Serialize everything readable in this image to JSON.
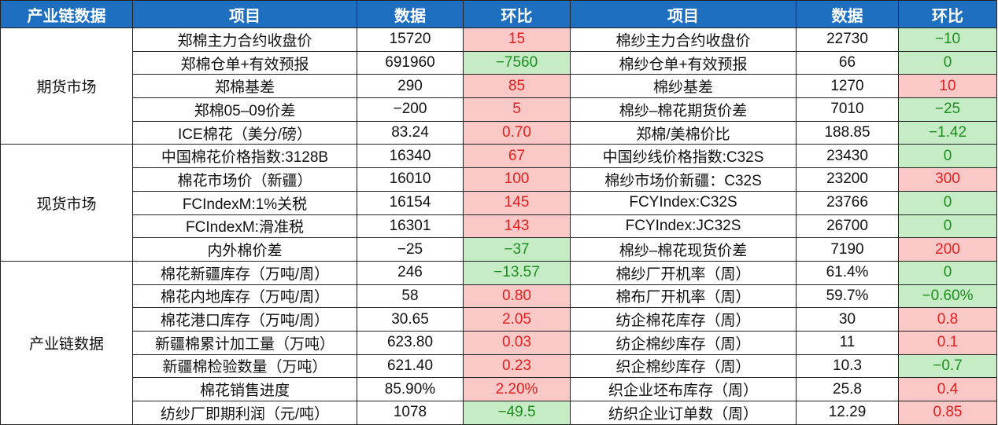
{
  "headers": [
    "产业链数据",
    "项目",
    "数据",
    "环比",
    "项目",
    "数据",
    "环比"
  ],
  "colors": {
    "header_bg": "#1f6fc0",
    "up_bg": "#fbc8c8",
    "up_text": "#e0201e",
    "down_bg": "#c6ecc6",
    "down_text": "#1e8c1e"
  },
  "sections": [
    {
      "name": "期货市场",
      "rows": [
        {
          "item1": "郑棉主力合约收盘价",
          "data1": "15720",
          "chg1": "15",
          "dir1": "up",
          "item2": "棉纱主力合约收盘价",
          "data2": "22730",
          "chg2": "−10",
          "dir2": "down"
        },
        {
          "item1": "郑棉仓单+有效预报",
          "data1": "691960",
          "chg1": "−7560",
          "dir1": "down",
          "item2": "棉纱仓单+有效预报",
          "data2": "66",
          "chg2": "0",
          "dir2": "flat"
        },
        {
          "item1": "郑棉基差",
          "data1": "290",
          "chg1": "85",
          "dir1": "up",
          "item2": "棉纱基差",
          "data2": "1270",
          "chg2": "10",
          "dir2": "up"
        },
        {
          "item1": "郑棉05–09价差",
          "data1": "−200",
          "chg1": "5",
          "dir1": "up",
          "item2": "棉纱–棉花期货价差",
          "data2": "7010",
          "chg2": "−25",
          "dir2": "down"
        },
        {
          "item1": "ICE棉花（美分/磅）",
          "data1": "83.24",
          "chg1": "0.70",
          "dir1": "up",
          "item2": "郑棉/美棉价比",
          "data2": "188.85",
          "chg2": "−1.42",
          "dir2": "down"
        }
      ]
    },
    {
      "name": "现货市场",
      "rows": [
        {
          "item1": "中国棉花价格指数:3128B",
          "data1": "16340",
          "chg1": "67",
          "dir1": "up",
          "item2": "中国纱线价格指数:C32S",
          "data2": "23430",
          "chg2": "0",
          "dir2": "flat"
        },
        {
          "item1": "棉花市场价（新疆）",
          "data1": "16010",
          "chg1": "100",
          "dir1": "up",
          "item2": "棉纱市场价新疆：C32S",
          "data2": "23200",
          "chg2": "300",
          "dir2": "up"
        },
        {
          "item1": "FCIndexM:1%关税",
          "data1": "16154",
          "chg1": "145",
          "dir1": "up",
          "item2": "FCYIndex:C32S",
          "data2": "23766",
          "chg2": "0",
          "dir2": "flat"
        },
        {
          "item1": "FCIndexM:滑准税",
          "data1": "16301",
          "chg1": "143",
          "dir1": "up",
          "item2": "FCYIndex:JC32S",
          "data2": "26700",
          "chg2": "0",
          "dir2": "flat"
        },
        {
          "item1": "内外棉价差",
          "data1": "−25",
          "chg1": "−37",
          "dir1": "down",
          "item2": "棉纱–棉花现货价差",
          "data2": "7190",
          "chg2": "200",
          "dir2": "up"
        }
      ]
    },
    {
      "name": "产业链数据",
      "rows": [
        {
          "item1": "棉花新疆库存（万吨/周）",
          "data1": "246",
          "chg1": "−13.57",
          "dir1": "down",
          "item2": "棉纱厂开机率（周）",
          "data2": "61.4%",
          "chg2": "0",
          "dir2": "flat"
        },
        {
          "item1": "棉花内地库存（万吨/周）",
          "data1": "58",
          "chg1": "0.80",
          "dir1": "up",
          "item2": "棉布厂开机率（周）",
          "data2": "59.7%",
          "chg2": "−0.60%",
          "dir2": "down"
        },
        {
          "item1": "棉花港口库存（万吨/周）",
          "data1": "30.65",
          "chg1": "2.05",
          "dir1": "up",
          "item2": "纺企棉花库存（周）",
          "data2": "30",
          "chg2": "0.8",
          "dir2": "up"
        },
        {
          "item1": "新疆棉累计加工量（万吨）",
          "data1": "623.80",
          "chg1": "0.03",
          "dir1": "up",
          "item2": "纺企棉纱库存（周）",
          "data2": "11",
          "chg2": "0.1",
          "dir2": "up"
        },
        {
          "item1": "新疆棉检验数量（万吨）",
          "data1": "621.40",
          "chg1": "0.23",
          "dir1": "up",
          "item2": "织企棉纱库存（周）",
          "data2": "10.3",
          "chg2": "−0.7",
          "dir2": "down"
        },
        {
          "item1": "棉花销售进度",
          "data1": "85.90%",
          "chg1": "2.20%",
          "dir1": "up",
          "item2": "织企业坯布库存（周）",
          "data2": "25.8",
          "chg2": "0.4",
          "dir2": "up"
        },
        {
          "item1": "纺纱厂即期利润（元/吨）",
          "data1": "1078",
          "chg1": "−49.5",
          "dir1": "down",
          "item2": "纺织企业订单数（周）",
          "data2": "12.29",
          "chg2": "0.85",
          "dir2": "up"
        }
      ]
    }
  ]
}
